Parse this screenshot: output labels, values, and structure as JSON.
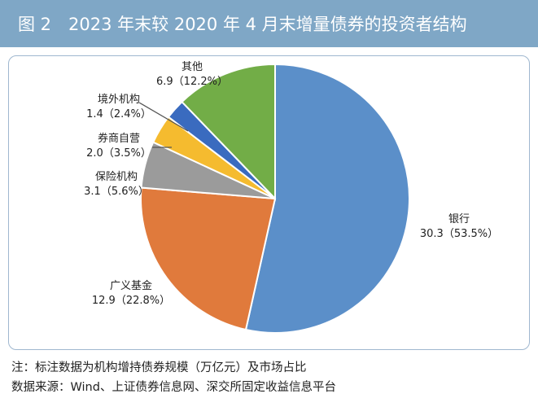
{
  "figure": {
    "title": "图 2　2023 年末较 2020 年 4 月末增量债券的投资者结构",
    "note": "注：标注数据为机构增持债券规模（万亿元）及市场占比",
    "source": "数据来源：Wind、上证债券信息网、深交所固定收益信息平台"
  },
  "colors": {
    "title_bg": "#7fa7c6",
    "frame": "#9fb7cf"
  },
  "chart_data": {
    "type": "pie",
    "title": "2023 年末较 2020 年 4 月末增量债券的投资者结构",
    "start_angle_deg": 0,
    "direction": "clockwise",
    "slices": [
      {
        "name": "银行",
        "value": 30.3,
        "percent": 53.5,
        "label": "30.3（53.5%）",
        "color": "#5b8fc9"
      },
      {
        "name": "广义基金",
        "value": 12.9,
        "percent": 22.8,
        "label": "12.9（22.8%）",
        "color": "#e07a3c"
      },
      {
        "name": "保险机构",
        "value": 3.1,
        "percent": 5.6,
        "label": "3.1（5.6%）",
        "color": "#9b9b9b"
      },
      {
        "name": "券商自营",
        "value": 2.0,
        "percent": 3.5,
        "label": "2.0（3.5%）",
        "color": "#f5bb2f"
      },
      {
        "name": "境外机构",
        "value": 1.4,
        "percent": 2.4,
        "label": "1.4（2.4%）",
        "color": "#3a6bbf"
      },
      {
        "name": "其他",
        "value": 6.9,
        "percent": 12.2,
        "label": "6.9（12.2%）",
        "color": "#72ad47"
      }
    ]
  }
}
